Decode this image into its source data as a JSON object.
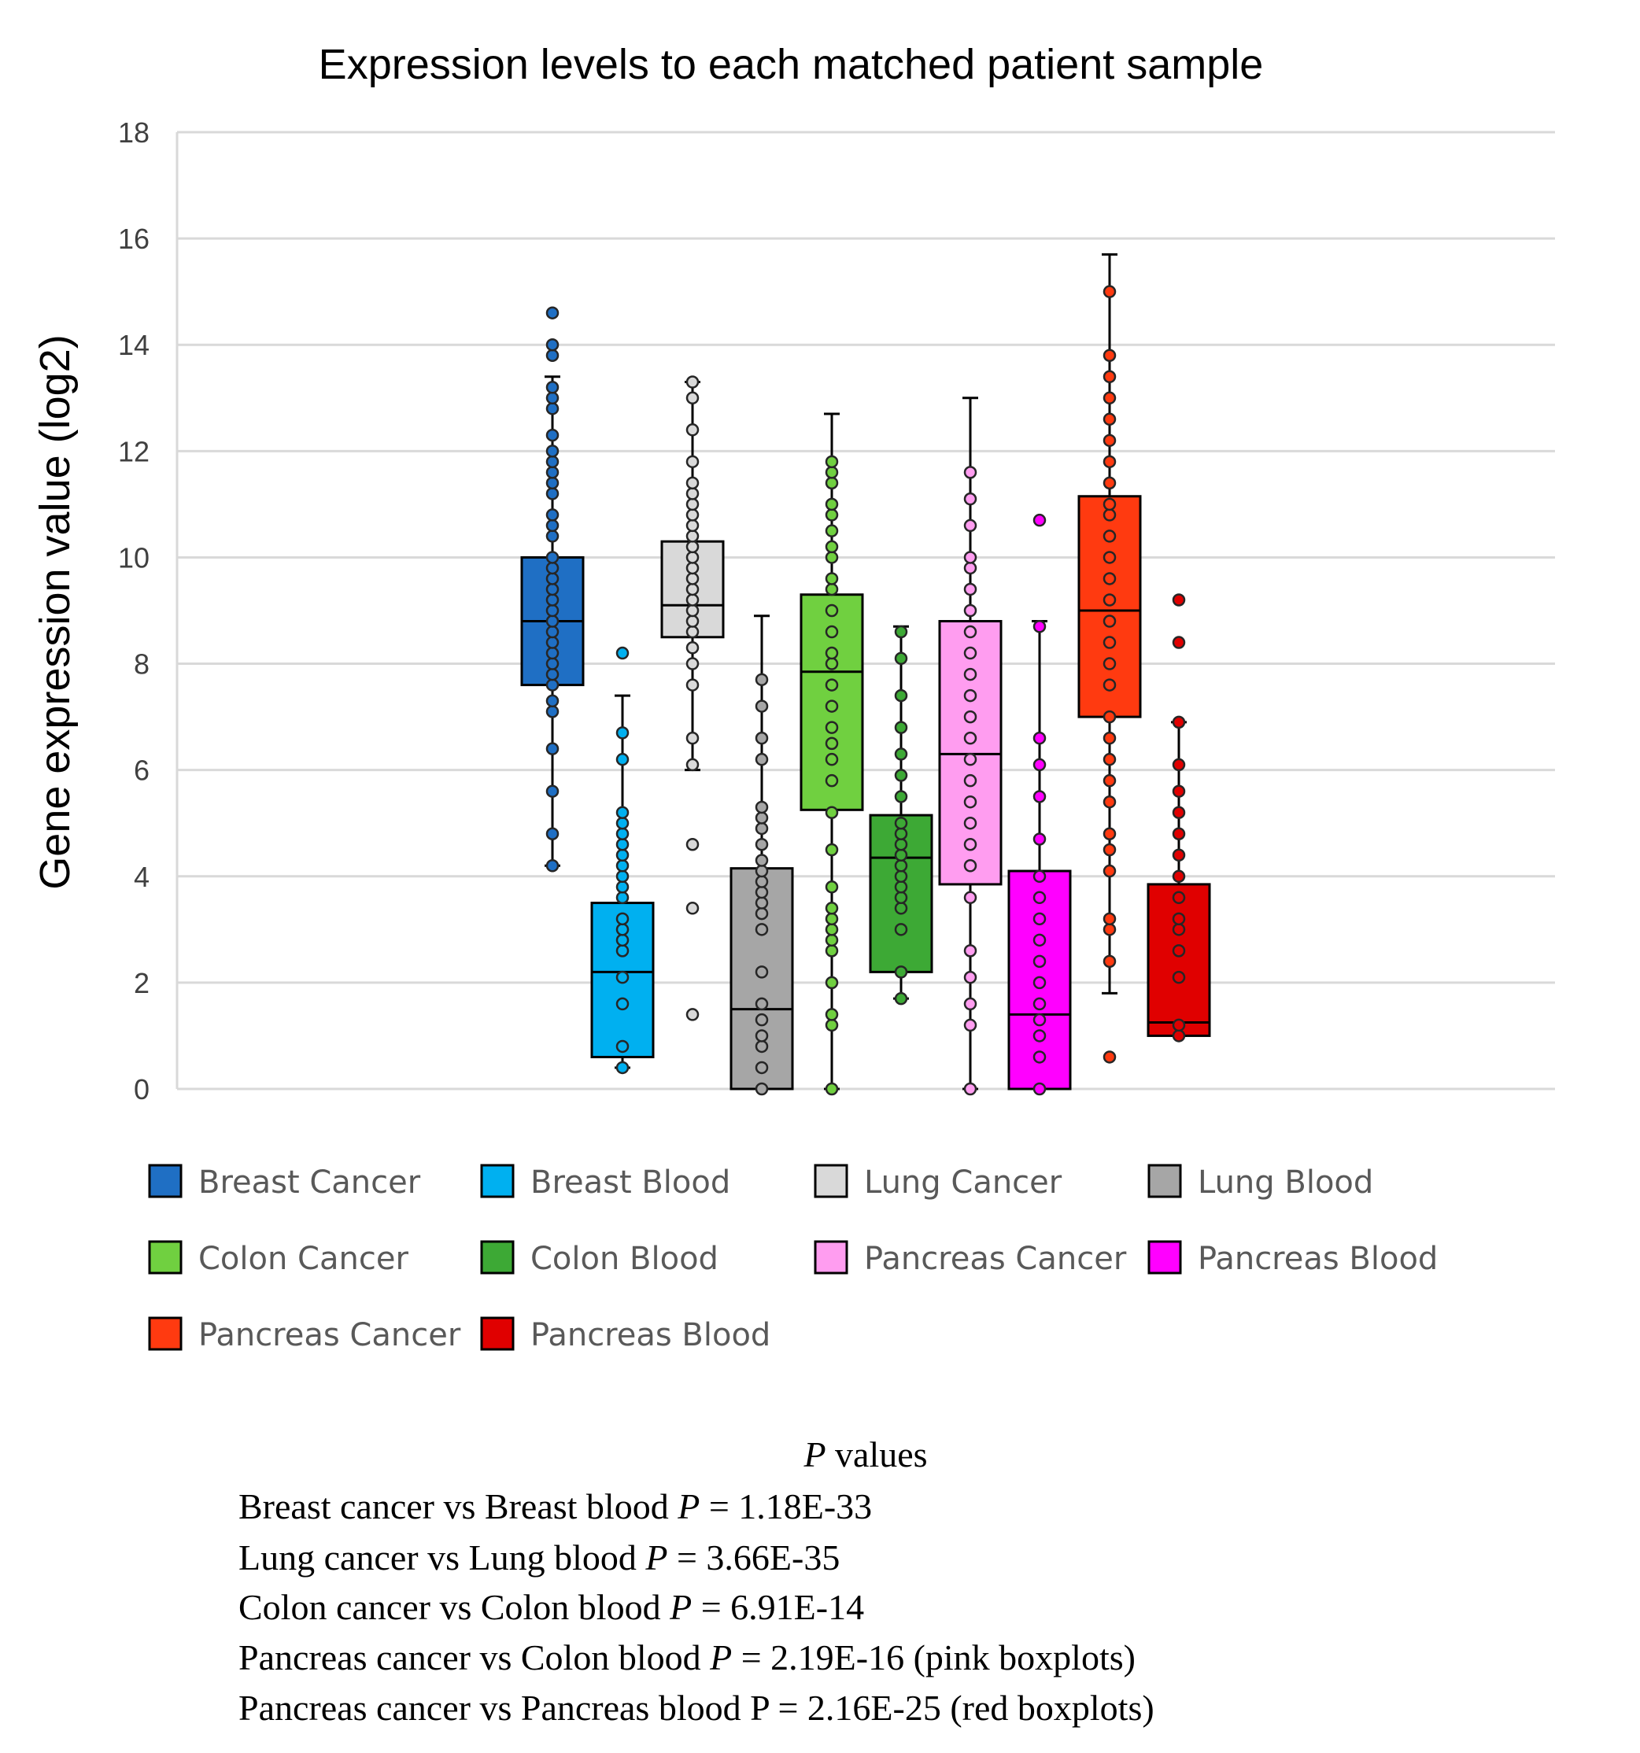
{
  "chart_data": {
    "type": "boxplot",
    "title": "Expression levels to each matched patient sample",
    "ylabel": "Gene expression value (log2)",
    "xlabel": "",
    "ylim": [
      0,
      18
    ],
    "yticks": [
      "0",
      "2",
      "4",
      "6",
      "8",
      "10",
      "12",
      "14",
      "16",
      "18"
    ],
    "grid": true,
    "legend_position": "bottom",
    "series": [
      {
        "name": "Breast Cancer",
        "color": "#1F6FC4",
        "min": 4.2,
        "q1": 7.6,
        "median": 8.8,
        "q3": 10.0,
        "max": 13.4,
        "points": [
          4.2,
          4.8,
          5.6,
          6.4,
          7.1,
          7.3,
          7.6,
          7.8,
          8.0,
          8.2,
          8.4,
          8.6,
          8.8,
          9.0,
          9.2,
          9.4,
          9.6,
          9.8,
          10.0,
          10.4,
          10.6,
          10.8,
          11.2,
          11.4,
          11.6,
          11.8,
          12.0,
          12.3,
          12.8,
          13.0,
          13.2,
          13.8,
          14.0,
          14.6
        ]
      },
      {
        "name": "Breast Blood",
        "color": "#00B0F0",
        "min": 0.4,
        "q1": 0.6,
        "median": 2.2,
        "q3": 3.5,
        "max": 7.4,
        "points": [
          0.4,
          0.8,
          1.6,
          2.1,
          2.6,
          2.8,
          3.0,
          3.2,
          3.6,
          3.8,
          4.0,
          4.2,
          4.4,
          4.6,
          4.8,
          5.0,
          5.2,
          6.2,
          6.7,
          8.2
        ]
      },
      {
        "name": "Lung Cancer",
        "color": "#D9D9D9",
        "min": 6.0,
        "q1": 8.5,
        "median": 9.1,
        "q3": 10.3,
        "max": 13.3,
        "points": [
          1.4,
          3.4,
          4.6,
          6.1,
          6.6,
          7.6,
          8.0,
          8.3,
          8.6,
          8.8,
          9.0,
          9.2,
          9.4,
          9.6,
          9.8,
          10.0,
          10.2,
          10.4,
          10.6,
          10.8,
          11.0,
          11.2,
          11.4,
          11.8,
          12.4,
          13.0,
          13.3
        ]
      },
      {
        "name": "Lung Blood",
        "color": "#A6A6A6",
        "min": 0.0,
        "q1": 0.0,
        "median": 1.5,
        "q3": 4.15,
        "max": 8.9,
        "points": [
          0.0,
          0.4,
          0.8,
          1.0,
          1.3,
          1.6,
          2.2,
          3.0,
          3.3,
          3.5,
          3.7,
          3.9,
          4.1,
          4.3,
          4.6,
          4.9,
          5.1,
          5.3,
          6.2,
          6.6,
          7.2,
          7.7
        ]
      },
      {
        "name": "Colon Cancer",
        "color": "#70D040",
        "min": 0.0,
        "q1": 5.25,
        "median": 7.85,
        "q3": 9.3,
        "max": 12.7,
        "points": [
          0.0,
          1.2,
          1.4,
          2.0,
          2.6,
          2.8,
          3.0,
          3.2,
          3.4,
          3.8,
          4.5,
          5.2,
          5.8,
          6.2,
          6.5,
          6.8,
          7.2,
          7.6,
          8.0,
          8.2,
          8.6,
          9.0,
          9.4,
          9.6,
          10.0,
          10.2,
          10.5,
          10.8,
          11.0,
          11.4,
          11.6,
          11.8
        ]
      },
      {
        "name": "Colon Blood",
        "color": "#3DA935",
        "min": 1.7,
        "q1": 2.2,
        "median": 4.35,
        "q3": 5.15,
        "max": 8.7,
        "points": [
          1.7,
          2.2,
          3.0,
          3.4,
          3.6,
          3.8,
          4.0,
          4.2,
          4.4,
          4.6,
          4.8,
          5.0,
          5.5,
          5.9,
          6.3,
          6.8,
          7.4,
          8.1,
          8.6
        ]
      },
      {
        "name": "Pancreas Cancer",
        "color": "#FF9DF0",
        "min": 0.0,
        "q1": 3.85,
        "median": 6.3,
        "q3": 8.8,
        "max": 13.0,
        "points": [
          0.0,
          1.2,
          1.6,
          2.1,
          2.6,
          3.6,
          4.2,
          4.6,
          5.0,
          5.4,
          5.8,
          6.2,
          6.6,
          7.0,
          7.4,
          7.8,
          8.2,
          8.6,
          9.0,
          9.4,
          9.8,
          10.0,
          10.6,
          11.1,
          11.6
        ]
      },
      {
        "name": "Pancreas Blood",
        "color": "#FF00FF",
        "min": 0.0,
        "q1": 0.0,
        "median": 1.4,
        "q3": 4.1,
        "max": 8.8,
        "points": [
          0.0,
          0.6,
          1.0,
          1.3,
          1.6,
          2.0,
          2.4,
          2.8,
          3.2,
          3.6,
          4.0,
          4.7,
          5.5,
          6.1,
          6.6,
          8.7,
          10.7
        ]
      },
      {
        "name": "Pancreas Cancer",
        "color": "#FF3A10",
        "min": 1.8,
        "q1": 7.0,
        "median": 9.0,
        "q3": 11.15,
        "max": 15.7,
        "points": [
          0.6,
          2.4,
          3.0,
          3.2,
          4.1,
          4.5,
          4.8,
          5.4,
          5.8,
          6.2,
          6.6,
          7.0,
          7.6,
          8.0,
          8.4,
          8.8,
          9.2,
          9.6,
          10.0,
          10.4,
          10.8,
          11.0,
          11.4,
          11.8,
          12.2,
          12.6,
          13.0,
          13.4,
          13.8,
          15.0
        ]
      },
      {
        "name": "Pancreas Blood",
        "color": "#E00000",
        "min": 1.0,
        "q1": 1.0,
        "median": 1.25,
        "q3": 3.85,
        "max": 6.9,
        "points": [
          1.0,
          1.2,
          2.1,
          2.6,
          3.0,
          3.2,
          3.6,
          4.0,
          4.4,
          4.8,
          5.2,
          5.6,
          6.1,
          6.9,
          8.4,
          9.2
        ]
      }
    ],
    "annotations": {
      "title": "P values",
      "lines": [
        "Breast cancer vs Breast blood P = 1.18E-33",
        "Lung cancer vs Lung blood P = 3.66E-35",
        "Colon cancer vs Colon blood P = 6.91E-14",
        "Pancreas cancer vs Colon blood P = 2.19E-16 (pink boxplots)",
        "Pancreas cancer vs Pancreas blood P = 2.16E-25 (red boxplots)"
      ]
    }
  }
}
